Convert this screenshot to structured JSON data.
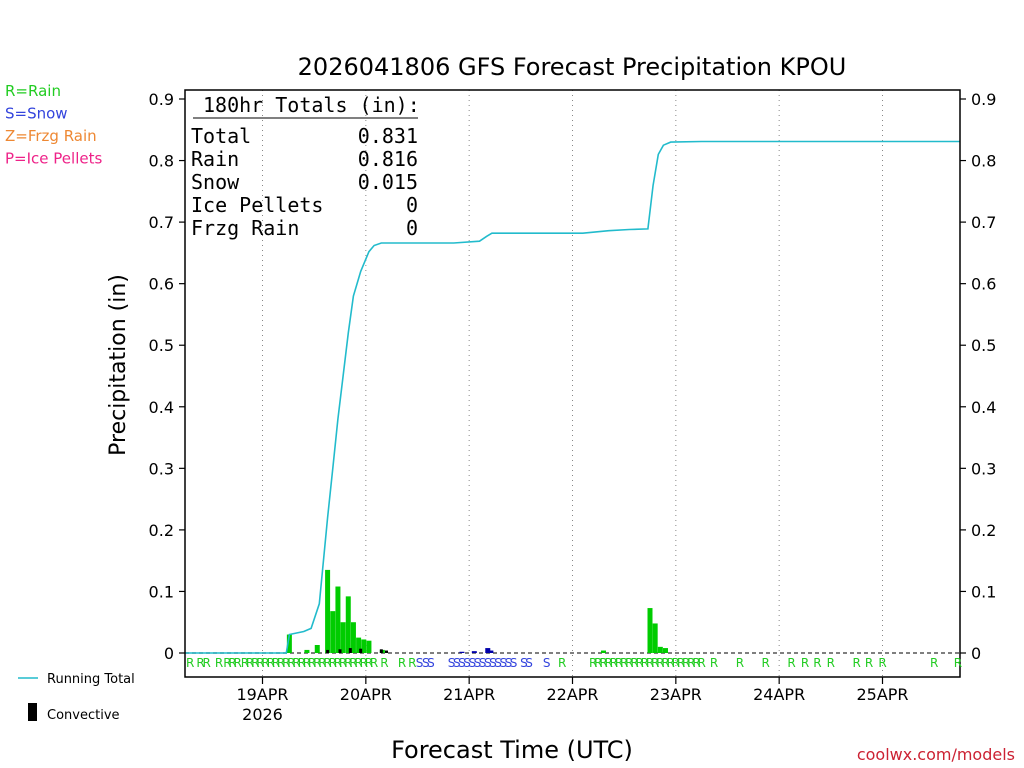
{
  "chart_data": {
    "type": "bar",
    "title": "2026041806 GFS Forecast Precipitation KPOU",
    "xlabel": "Forecast Time (UTC)",
    "ylabel": "Precipitation (in)",
    "ylim": [
      0,
      0.92
    ],
    "y_ticks": [
      0,
      0.1,
      0.2,
      0.3,
      0.4,
      0.5,
      0.6,
      0.7,
      0.8,
      0.9
    ],
    "y_tick_labels": [
      "0",
      "0.1",
      "0.2",
      "0.3",
      "0.4",
      "0.5",
      "0.6",
      "0.7",
      "0.8",
      "0.9"
    ],
    "x_range_days": [
      0,
      7.5
    ],
    "x_ticks": [
      {
        "day": 0.75,
        "label": "19APR",
        "sublabel": "2026"
      },
      {
        "day": 1.75,
        "label": "20APR",
        "sublabel": ""
      },
      {
        "day": 2.75,
        "label": "21APR",
        "sublabel": ""
      },
      {
        "day": 3.75,
        "label": "22APR",
        "sublabel": ""
      },
      {
        "day": 4.75,
        "label": "23APR",
        "sublabel": ""
      },
      {
        "day": 5.75,
        "label": "24APR",
        "sublabel": ""
      },
      {
        "day": 6.75,
        "label": "25APR",
        "sublabel": ""
      }
    ],
    "grid": "vertical dotted at day ticks",
    "totals_box": {
      "heading": "180hr Totals (in):",
      "rows": [
        {
          "label": "Total",
          "value": "0.831"
        },
        {
          "label": "Rain",
          "value": "0.816"
        },
        {
          "label": "Snow",
          "value": "0.015"
        },
        {
          "label": "Ice Pellets",
          "value": "0"
        },
        {
          "label": "Frzg Rain",
          "value": "0"
        }
      ]
    },
    "legend_types": [
      {
        "label": "R=Rain",
        "color": "#22cc22"
      },
      {
        "label": "S=Snow",
        "color": "#3344dd"
      },
      {
        "label": "Z=Frzg Rain",
        "color": "#ee8833"
      },
      {
        "label": "P=Ice Pellets",
        "color": "#ee2288"
      }
    ],
    "legend_lines": [
      {
        "label": "Running Total",
        "color": "#22bbcc",
        "kind": "line"
      },
      {
        "label": "Convective",
        "color": "#000000",
        "kind": "bar"
      }
    ],
    "watermark": "coolwx.com/models",
    "colors": {
      "rain": "#00cc00",
      "snow": "#0000aa",
      "convective": "#000000",
      "running_total": "#22bbcc"
    },
    "precip_bars": [
      {
        "day": 1.01,
        "value": 0.03,
        "type": "rain"
      },
      {
        "day": 1.18,
        "value": 0.005,
        "type": "rain"
      },
      {
        "day": 1.28,
        "value": 0.013,
        "type": "rain"
      },
      {
        "day": 1.38,
        "value": 0.135,
        "type": "rain"
      },
      {
        "day": 1.43,
        "value": 0.068,
        "type": "rain"
      },
      {
        "day": 1.48,
        "value": 0.108,
        "type": "rain"
      },
      {
        "day": 1.53,
        "value": 0.05,
        "type": "rain"
      },
      {
        "day": 1.58,
        "value": 0.092,
        "type": "rain"
      },
      {
        "day": 1.63,
        "value": 0.05,
        "type": "rain"
      },
      {
        "day": 1.68,
        "value": 0.025,
        "type": "rain"
      },
      {
        "day": 1.73,
        "value": 0.022,
        "type": "rain"
      },
      {
        "day": 1.78,
        "value": 0.02,
        "type": "rain"
      },
      {
        "day": 1.91,
        "value": 0.005,
        "type": "rain"
      },
      {
        "day": 2.68,
        "value": 0.002,
        "type": "snow"
      },
      {
        "day": 2.8,
        "value": 0.003,
        "type": "snow"
      },
      {
        "day": 2.93,
        "value": 0.008,
        "type": "snow"
      },
      {
        "day": 2.96,
        "value": 0.004,
        "type": "snow"
      },
      {
        "day": 4.05,
        "value": 0.004,
        "type": "rain"
      },
      {
        "day": 4.5,
        "value": 0.073,
        "type": "rain"
      },
      {
        "day": 4.55,
        "value": 0.048,
        "type": "rain"
      },
      {
        "day": 4.6,
        "value": 0.01,
        "type": "rain"
      },
      {
        "day": 4.65,
        "value": 0.008,
        "type": "rain"
      }
    ],
    "convective_bars": [
      {
        "day": 1.38,
        "value": 0.005
      },
      {
        "day": 1.5,
        "value": 0.006
      },
      {
        "day": 1.6,
        "value": 0.008
      },
      {
        "day": 1.7,
        "value": 0.007
      },
      {
        "day": 1.9,
        "value": 0.006
      },
      {
        "day": 1.95,
        "value": 0.004
      }
    ],
    "running_total": [
      [
        0.0,
        0.0
      ],
      [
        0.98,
        0.0
      ],
      [
        1.01,
        0.03
      ],
      [
        1.15,
        0.035
      ],
      [
        1.22,
        0.04
      ],
      [
        1.3,
        0.08
      ],
      [
        1.38,
        0.22
      ],
      [
        1.43,
        0.3
      ],
      [
        1.48,
        0.38
      ],
      [
        1.53,
        0.45
      ],
      [
        1.58,
        0.52
      ],
      [
        1.63,
        0.58
      ],
      [
        1.7,
        0.62
      ],
      [
        1.78,
        0.652
      ],
      [
        1.83,
        0.662
      ],
      [
        1.9,
        0.666
      ],
      [
        2.2,
        0.666
      ],
      [
        2.6,
        0.666
      ],
      [
        2.85,
        0.669
      ],
      [
        2.92,
        0.677
      ],
      [
        2.97,
        0.682
      ],
      [
        3.5,
        0.682
      ],
      [
        3.85,
        0.682
      ],
      [
        4.1,
        0.686
      ],
      [
        4.3,
        0.688
      ],
      [
        4.48,
        0.689
      ],
      [
        4.53,
        0.76
      ],
      [
        4.58,
        0.81
      ],
      [
        4.63,
        0.825
      ],
      [
        4.7,
        0.83
      ],
      [
        5.0,
        0.831
      ],
      [
        7.5,
        0.831
      ]
    ],
    "type_markers": [
      {
        "day": 0.05,
        "text": "R",
        "type": "rain"
      },
      {
        "day": 0.15,
        "text": "R",
        "type": "rain"
      },
      {
        "day": 0.21,
        "text": "R",
        "type": "rain"
      },
      {
        "day": 0.33,
        "text": "R",
        "type": "rain"
      },
      {
        "day": 0.41,
        "text": "R",
        "type": "rain"
      },
      {
        "day": 0.46,
        "text": "R",
        "type": "rain"
      },
      {
        "day": 0.51,
        "text": "R",
        "type": "rain"
      },
      {
        "day": 0.58,
        "text": "R",
        "type": "rain"
      },
      {
        "day": 0.63,
        "text": "R",
        "type": "rain"
      },
      {
        "day": 0.68,
        "text": "R",
        "type": "rain"
      },
      {
        "day": 0.73,
        "text": "R",
        "type": "rain"
      },
      {
        "day": 0.78,
        "text": "R",
        "type": "rain"
      },
      {
        "day": 0.83,
        "text": "R",
        "type": "rain"
      },
      {
        "day": 0.88,
        "text": "R",
        "type": "rain"
      },
      {
        "day": 0.93,
        "text": "R",
        "type": "rain"
      },
      {
        "day": 0.98,
        "text": "R",
        "type": "rain"
      },
      {
        "day": 1.03,
        "text": "R",
        "type": "rain"
      },
      {
        "day": 1.08,
        "text": "R",
        "type": "rain"
      },
      {
        "day": 1.13,
        "text": "R",
        "type": "rain"
      },
      {
        "day": 1.18,
        "text": "R",
        "type": "rain"
      },
      {
        "day": 1.23,
        "text": "R",
        "type": "rain"
      },
      {
        "day": 1.28,
        "text": "R",
        "type": "rain"
      },
      {
        "day": 1.33,
        "text": "R",
        "type": "rain"
      },
      {
        "day": 1.38,
        "text": "R",
        "type": "rain"
      },
      {
        "day": 1.43,
        "text": "R",
        "type": "rain"
      },
      {
        "day": 1.48,
        "text": "R",
        "type": "rain"
      },
      {
        "day": 1.53,
        "text": "R",
        "type": "rain"
      },
      {
        "day": 1.58,
        "text": "R",
        "type": "rain"
      },
      {
        "day": 1.63,
        "text": "R",
        "type": "rain"
      },
      {
        "day": 1.68,
        "text": "R",
        "type": "rain"
      },
      {
        "day": 1.73,
        "text": "R",
        "type": "rain"
      },
      {
        "day": 1.78,
        "text": "R",
        "type": "rain"
      },
      {
        "day": 1.83,
        "text": "R",
        "type": "rain"
      },
      {
        "day": 1.93,
        "text": "R",
        "type": "rain"
      },
      {
        "day": 2.1,
        "text": "R",
        "type": "rain"
      },
      {
        "day": 2.2,
        "text": "R",
        "type": "rain"
      },
      {
        "day": 2.27,
        "text": "S",
        "type": "snow"
      },
      {
        "day": 2.33,
        "text": "S",
        "type": "snow"
      },
      {
        "day": 2.38,
        "text": "S",
        "type": "snow"
      },
      {
        "day": 2.58,
        "text": "S",
        "type": "snow"
      },
      {
        "day": 2.63,
        "text": "S",
        "type": "snow"
      },
      {
        "day": 2.68,
        "text": "S",
        "type": "snow"
      },
      {
        "day": 2.73,
        "text": "S",
        "type": "snow"
      },
      {
        "day": 2.78,
        "text": "S",
        "type": "snow"
      },
      {
        "day": 2.83,
        "text": "S",
        "type": "snow"
      },
      {
        "day": 2.88,
        "text": "S",
        "type": "snow"
      },
      {
        "day": 2.93,
        "text": "S",
        "type": "snow"
      },
      {
        "day": 2.98,
        "text": "S",
        "type": "snow"
      },
      {
        "day": 3.03,
        "text": "S",
        "type": "snow"
      },
      {
        "day": 3.08,
        "text": "S",
        "type": "snow"
      },
      {
        "day": 3.13,
        "text": "S",
        "type": "snow"
      },
      {
        "day": 3.18,
        "text": "S",
        "type": "snow"
      },
      {
        "day": 3.28,
        "text": "S",
        "type": "snow"
      },
      {
        "day": 3.33,
        "text": "S",
        "type": "snow"
      },
      {
        "day": 3.5,
        "text": "S",
        "type": "snow"
      },
      {
        "day": 3.65,
        "text": "R",
        "type": "rain"
      },
      {
        "day": 3.95,
        "text": "R",
        "type": "rain"
      },
      {
        "day": 4.0,
        "text": "R",
        "type": "rain"
      },
      {
        "day": 4.05,
        "text": "R",
        "type": "rain"
      },
      {
        "day": 4.1,
        "text": "R",
        "type": "rain"
      },
      {
        "day": 4.15,
        "text": "R",
        "type": "rain"
      },
      {
        "day": 4.2,
        "text": "R",
        "type": "rain"
      },
      {
        "day": 4.25,
        "text": "R",
        "type": "rain"
      },
      {
        "day": 4.3,
        "text": "R",
        "type": "rain"
      },
      {
        "day": 4.35,
        "text": "R",
        "type": "rain"
      },
      {
        "day": 4.4,
        "text": "R",
        "type": "rain"
      },
      {
        "day": 4.45,
        "text": "R",
        "type": "rain"
      },
      {
        "day": 4.5,
        "text": "R",
        "type": "rain"
      },
      {
        "day": 4.55,
        "text": "R",
        "type": "rain"
      },
      {
        "day": 4.6,
        "text": "R",
        "type": "rain"
      },
      {
        "day": 4.65,
        "text": "R",
        "type": "rain"
      },
      {
        "day": 4.7,
        "text": "R",
        "type": "rain"
      },
      {
        "day": 4.75,
        "text": "R",
        "type": "rain"
      },
      {
        "day": 4.8,
        "text": "R",
        "type": "rain"
      },
      {
        "day": 4.85,
        "text": "R",
        "type": "rain"
      },
      {
        "day": 4.9,
        "text": "R",
        "type": "rain"
      },
      {
        "day": 4.95,
        "text": "R",
        "type": "rain"
      },
      {
        "day": 5.0,
        "text": "R",
        "type": "rain"
      },
      {
        "day": 5.12,
        "text": "R",
        "type": "rain"
      },
      {
        "day": 5.37,
        "text": "R",
        "type": "rain"
      },
      {
        "day": 5.62,
        "text": "R",
        "type": "rain"
      },
      {
        "day": 5.87,
        "text": "R",
        "type": "rain"
      },
      {
        "day": 6.0,
        "text": "R",
        "type": "rain"
      },
      {
        "day": 6.12,
        "text": "R",
        "type": "rain"
      },
      {
        "day": 6.25,
        "text": "R",
        "type": "rain"
      },
      {
        "day": 6.5,
        "text": "R",
        "type": "rain"
      },
      {
        "day": 6.62,
        "text": "R",
        "type": "rain"
      },
      {
        "day": 6.75,
        "text": "R",
        "type": "rain"
      },
      {
        "day": 7.25,
        "text": "R",
        "type": "rain"
      },
      {
        "day": 7.48,
        "text": "R",
        "type": "rain"
      }
    ]
  }
}
